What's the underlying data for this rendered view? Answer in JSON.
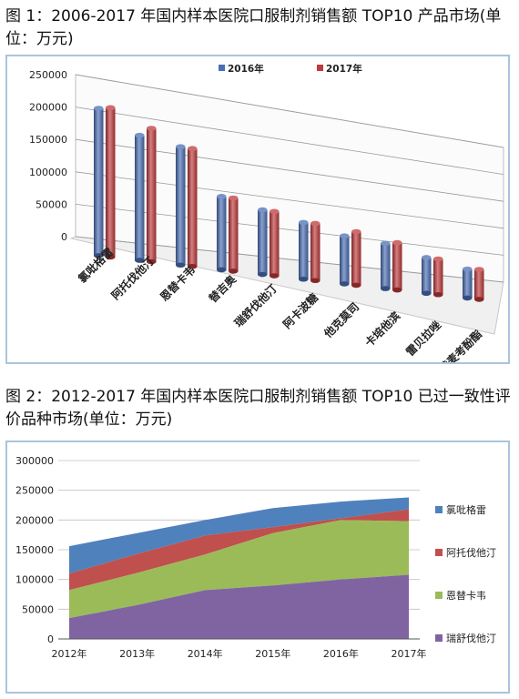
{
  "caption1": "图 1：2006-2017 年国内样本医院口服制剂销售额 TOP10 产品市场(单位：万元)",
  "caption2": "图 2：2012-2017 年国内样本医院口服制剂销售额 TOP10 已过一致性评价品种市场(单位：万元)",
  "chart_data": [
    {
      "type": "bar",
      "categories": [
        "氯吡格雷",
        "阿托伐他汀",
        "恩替卡韦",
        "替吉奥",
        "瑞舒伐他汀",
        "阿卡波糖",
        "他克莫司",
        "卡培他滨",
        "雷贝拉唑",
        "吗替麦考酚酯"
      ],
      "series": [
        {
          "name": "2016年",
          "color": "#4a6fb5",
          "values": [
            232000,
            200000,
            192000,
            121000,
            108000,
            96000,
            82000,
            78000,
            62000,
            50000
          ]
        },
        {
          "name": "2017年",
          "color": "#c0393b",
          "values": [
            236000,
            214000,
            192000,
            121000,
            108000,
            97000,
            92000,
            82000,
            62000,
            52000
          ]
        }
      ],
      "yticks": [
        "250000",
        "200000",
        "150000",
        "100000",
        "50000",
        "0"
      ],
      "ylim": [
        0,
        250000
      ],
      "legend": "top"
    },
    {
      "type": "area",
      "stacked": true,
      "x": [
        "2012年",
        "2013年",
        "2014年",
        "2015年",
        "2016年",
        "2017年"
      ],
      "series": [
        {
          "name": "瑞舒伐他汀",
          "color": "#8064a2",
          "values": [
            35000,
            57000,
            82000,
            90000,
            100000,
            108000
          ]
        },
        {
          "name": "恩替卡韦",
          "color": "#9bbb59",
          "values": [
            47000,
            54000,
            60000,
            88000,
            100000,
            90000
          ]
        },
        {
          "name": "阿托伐他汀",
          "color": "#c0504d",
          "values": [
            28000,
            32000,
            32000,
            10000,
            3000,
            20000
          ]
        },
        {
          "name": "氯吡格雷",
          "color": "#4f81bd",
          "values": [
            46000,
            35000,
            26000,
            32000,
            28000,
            20000
          ]
        }
      ],
      "yticks": [
        "300000",
        "250000",
        "200000",
        "150000",
        "100000",
        "50000",
        "0"
      ],
      "ylim": [
        0,
        300000
      ],
      "legend": "right"
    }
  ]
}
